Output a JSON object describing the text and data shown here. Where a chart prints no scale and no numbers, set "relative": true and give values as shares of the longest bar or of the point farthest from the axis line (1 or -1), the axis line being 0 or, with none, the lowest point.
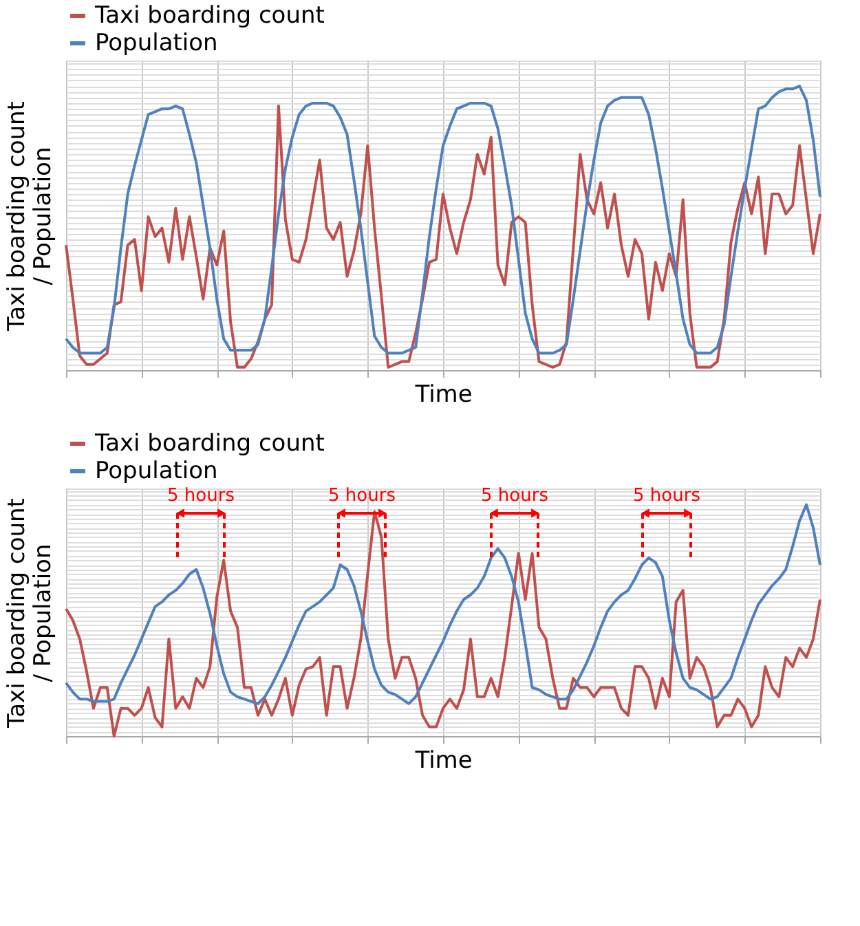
{
  "chart_data": [
    {
      "type": "line",
      "relative": true,
      "xlabel": "Time",
      "ylabel": "Taxi boarding count\n/ Population",
      "legend": "top left",
      "grid": true,
      "tick_labels": false,
      "categories": [
        null,
        null,
        null,
        null,
        null,
        null,
        null,
        null,
        null,
        null,
        null,
        null,
        null,
        null,
        null,
        null,
        null,
        null,
        null,
        null,
        null,
        null,
        null,
        null,
        null,
        null,
        null,
        null,
        null,
        null,
        null,
        null,
        null,
        null,
        null,
        null,
        null,
        null,
        null,
        null,
        null,
        null,
        null,
        null,
        null,
        null,
        null,
        null,
        null,
        null,
        null,
        null,
        null,
        null,
        null,
        null,
        null,
        null,
        null,
        null,
        null,
        null,
        null,
        null,
        null,
        null,
        null,
        null,
        null,
        null,
        null,
        null,
        null,
        null,
        null,
        null,
        null,
        null,
        null,
        null,
        null,
        null,
        null,
        null,
        null,
        null,
        null,
        null,
        null,
        null,
        null,
        null,
        null,
        null,
        null,
        null,
        null,
        null,
        null,
        null,
        null,
        null,
        null,
        null,
        null,
        null,
        null,
        null,
        null,
        null,
        null
      ],
      "series": [
        {
          "name": "Taxi boarding count",
          "color": "#c0504d",
          "values": [
            0.44,
            0.25,
            0.05,
            0.02,
            0.02,
            0.04,
            0.06,
            0.23,
            0.24,
            0.44,
            0.46,
            0.28,
            0.54,
            0.47,
            0.5,
            0.38,
            0.57,
            0.39,
            0.54,
            0.4,
            0.25,
            0.43,
            0.37,
            0.49,
            0.17,
            0.01,
            0.01,
            0.04,
            0.1,
            0.18,
            0.23,
            0.93,
            0.53,
            0.39,
            0.38,
            0.46,
            0.6,
            0.74,
            0.5,
            0.46,
            0.52,
            0.33,
            0.42,
            0.55,
            0.79,
            0.5,
            0.26,
            0.01,
            0.02,
            0.03,
            0.03,
            0.13,
            0.25,
            0.38,
            0.39,
            0.62,
            0.5,
            0.41,
            0.52,
            0.6,
            0.76,
            0.69,
            0.82,
            0.37,
            0.3,
            0.52,
            0.54,
            0.52,
            0.23,
            0.03,
            0.02,
            0.01,
            0.02,
            0.1,
            0.43,
            0.76,
            0.6,
            0.55,
            0.66,
            0.5,
            0.62,
            0.44,
            0.33,
            0.46,
            0.41,
            0.18,
            0.38,
            0.28,
            0.41,
            0.33,
            0.6,
            0.2,
            0.01,
            0.01,
            0.01,
            0.03,
            0.18,
            0.45,
            0.57,
            0.66,
            0.55,
            0.68,
            0.41,
            0.62,
            0.62,
            0.55,
            0.58,
            0.79,
            0.6,
            0.41,
            0.55
          ]
        },
        {
          "name": "Population",
          "color": "#4f81bd",
          "values": [
            0.11,
            0.08,
            0.06,
            0.06,
            0.06,
            0.06,
            0.08,
            0.22,
            0.43,
            0.62,
            0.72,
            0.81,
            0.9,
            0.91,
            0.92,
            0.92,
            0.93,
            0.92,
            0.83,
            0.73,
            0.58,
            0.43,
            0.25,
            0.11,
            0.07,
            0.07,
            0.07,
            0.07,
            0.09,
            0.18,
            0.36,
            0.55,
            0.71,
            0.82,
            0.9,
            0.93,
            0.94,
            0.94,
            0.94,
            0.93,
            0.89,
            0.83,
            0.67,
            0.5,
            0.31,
            0.12,
            0.08,
            0.06,
            0.06,
            0.06,
            0.07,
            0.08,
            0.27,
            0.47,
            0.64,
            0.79,
            0.86,
            0.92,
            0.93,
            0.94,
            0.94,
            0.94,
            0.93,
            0.85,
            0.72,
            0.58,
            0.39,
            0.2,
            0.11,
            0.06,
            0.06,
            0.06,
            0.07,
            0.09,
            0.25,
            0.42,
            0.59,
            0.74,
            0.87,
            0.93,
            0.95,
            0.96,
            0.96,
            0.96,
            0.96,
            0.9,
            0.78,
            0.64,
            0.49,
            0.34,
            0.18,
            0.09,
            0.06,
            0.06,
            0.06,
            0.08,
            0.16,
            0.33,
            0.49,
            0.64,
            0.78,
            0.92,
            0.93,
            0.96,
            0.98,
            0.99,
            0.99,
            1,
            0.95,
            0.81,
            0.61
          ]
        }
      ]
    },
    {
      "type": "line",
      "relative": true,
      "xlabel": "Time",
      "ylabel": "Taxi boarding count\n/ Population",
      "legend": "top left",
      "grid": true,
      "tick_labels": false,
      "categories": [
        null,
        null,
        null,
        null,
        null,
        null,
        null,
        null,
        null,
        null,
        null,
        null,
        null,
        null,
        null,
        null,
        null,
        null,
        null,
        null,
        null,
        null,
        null,
        null,
        null,
        null,
        null,
        null,
        null,
        null,
        null,
        null,
        null,
        null,
        null,
        null,
        null,
        null,
        null,
        null,
        null,
        null,
        null,
        null,
        null,
        null,
        null,
        null,
        null,
        null,
        null,
        null,
        null,
        null,
        null,
        null,
        null,
        null,
        null,
        null,
        null,
        null,
        null,
        null,
        null,
        null,
        null,
        null,
        null,
        null,
        null,
        null,
        null,
        null,
        null,
        null,
        null,
        null,
        null,
        null,
        null,
        null,
        null,
        null,
        null,
        null,
        null,
        null,
        null,
        null,
        null,
        null,
        null,
        null,
        null,
        null,
        null,
        null,
        null,
        null,
        null,
        null,
        null,
        null,
        null,
        null,
        null,
        null,
        null,
        null,
        null
      ],
      "annotations": [
        "5 hours",
        "5 hours",
        "5 hours",
        "5 hours"
      ],
      "series": [
        {
          "name": "Taxi boarding count",
          "color": "#c0504d",
          "values": [
            0.55,
            0.5,
            0.42,
            0.28,
            0.12,
            0.21,
            0.21,
            0,
            0.12,
            0.12,
            0.09,
            0.12,
            0.21,
            0.08,
            0.04,
            0.42,
            0.12,
            0.17,
            0.12,
            0.25,
            0.21,
            0.3,
            0.6,
            0.76,
            0.54,
            0.47,
            0.21,
            0.21,
            0.09,
            0.16,
            0.09,
            0.16,
            0.25,
            0.09,
            0.22,
            0.29,
            0.3,
            0.34,
            0.09,
            0.3,
            0.3,
            0.12,
            0.25,
            0.42,
            0.7,
            0.97,
            0.86,
            0.42,
            0.25,
            0.34,
            0.34,
            0.25,
            0.09,
            0.04,
            0.04,
            0.12,
            0.16,
            0.12,
            0.2,
            0.42,
            0.17,
            0.17,
            0.25,
            0.17,
            0.34,
            0.56,
            0.79,
            0.59,
            0.79,
            0.47,
            0.42,
            0.25,
            0.12,
            0.12,
            0.25,
            0.21,
            0.21,
            0.17,
            0.21,
            0.21,
            0.21,
            0.12,
            0.09,
            0.3,
            0.3,
            0.25,
            0.12,
            0.25,
            0.17,
            0.58,
            0.63,
            0.25,
            0.34,
            0.3,
            0.21,
            0.04,
            0.09,
            0.09,
            0.16,
            0.12,
            0.04,
            0.09,
            0.3,
            0.21,
            0.17,
            0.34,
            0.3,
            0.38,
            0.34,
            0.42,
            0.59
          ]
        },
        {
          "name": "Population",
          "color": "#4f81bd",
          "values": [
            0.23,
            0.19,
            0.16,
            0.16,
            0.15,
            0.15,
            0.15,
            0.16,
            0.23,
            0.29,
            0.35,
            0.42,
            0.49,
            0.56,
            0.58,
            0.61,
            0.63,
            0.66,
            0.7,
            0.72,
            0.64,
            0.53,
            0.39,
            0.27,
            0.19,
            0.17,
            0.16,
            0.15,
            0.14,
            0.17,
            0.22,
            0.28,
            0.34,
            0.41,
            0.48,
            0.54,
            0.56,
            0.58,
            0.61,
            0.64,
            0.74,
            0.72,
            0.65,
            0.54,
            0.41,
            0.29,
            0.22,
            0.19,
            0.18,
            0.16,
            0.14,
            0.17,
            0.23,
            0.29,
            0.35,
            0.41,
            0.48,
            0.54,
            0.59,
            0.61,
            0.64,
            0.69,
            0.77,
            0.81,
            0.77,
            0.69,
            0.58,
            0.4,
            0.21,
            0.2,
            0.18,
            0.17,
            0.16,
            0.16,
            0.2,
            0.26,
            0.32,
            0.39,
            0.47,
            0.54,
            0.58,
            0.61,
            0.63,
            0.68,
            0.74,
            0.77,
            0.75,
            0.69,
            0.5,
            0.36,
            0.25,
            0.21,
            0.2,
            0.18,
            0.16,
            0.17,
            0.21,
            0.25,
            0.34,
            0.42,
            0.5,
            0.57,
            0.61,
            0.65,
            0.68,
            0.72,
            0.82,
            0.93,
            1,
            0.9,
            0.74
          ]
        }
      ]
    }
  ]
}
